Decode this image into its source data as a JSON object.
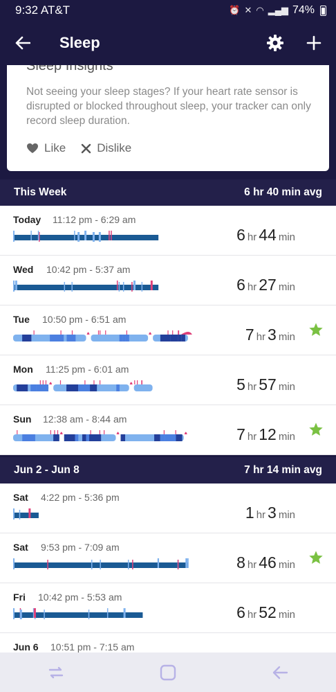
{
  "status_bar": {
    "carrier": "9:32 AT&T",
    "battery": "74%"
  },
  "app_bar": {
    "title": "Sleep"
  },
  "insight": {
    "title": "Sleep Insights",
    "body": "Not seeing your sleep stages? If your heart rate sensor is disrupted or blocked throughout sleep, your tracker can only record sleep duration.",
    "like_label": "Like",
    "dislike_label": "Dislike"
  },
  "sections": [
    {
      "title": "This Week",
      "avg": "6 hr 40 min avg",
      "rows": [
        {
          "day": "Today",
          "range": "11:12 pm - 6:29 am",
          "hours": "6",
          "minutes": "44",
          "star": false,
          "style": "classic",
          "bar_fraction": 0.74
        },
        {
          "day": "Wed",
          "range": "10:42 pm - 5:37 am",
          "hours": "6",
          "minutes": "27",
          "star": false,
          "style": "classic",
          "bar_fraction": 0.74
        },
        {
          "day": "Tue",
          "range": "10:50 pm - 6:51 am",
          "hours": "7",
          "minutes": "3",
          "star": true,
          "style": "stages",
          "bar_fraction": 0.86
        },
        {
          "day": "Mon",
          "range": "11:25 pm - 6:01 am",
          "hours": "5",
          "minutes": "57",
          "star": false,
          "style": "stages",
          "bar_fraction": 0.71
        },
        {
          "day": "Sun",
          "range": "12:38 am - 8:44 am",
          "hours": "7",
          "minutes": "12",
          "star": true,
          "style": "stages",
          "bar_fraction": 0.86
        }
      ]
    },
    {
      "title": "Jun 2 - Jun 8",
      "avg": "7 hr 14 min avg",
      "rows": [
        {
          "day": "Sat",
          "range": "4:22 pm - 5:36 pm",
          "hours": "1",
          "minutes": "3",
          "star": false,
          "style": "classic",
          "bar_fraction": 0.13
        },
        {
          "day": "Sat",
          "range": "9:53 pm - 7:09 am",
          "hours": "8",
          "minutes": "46",
          "star": true,
          "style": "classic",
          "bar_fraction": 0.86
        },
        {
          "day": "Fri",
          "range": "10:42 pm - 5:53 am",
          "hours": "6",
          "minutes": "52",
          "star": false,
          "style": "classic",
          "bar_fraction": 0.66
        },
        {
          "day": "Jun 6",
          "range": "10:51 pm - 7:15 am",
          "hours": "",
          "minutes": "",
          "star": false,
          "style": "none",
          "bar_fraction": 0
        }
      ]
    }
  ],
  "units": {
    "hr": "hr",
    "min": "min"
  },
  "colors": {
    "header": "#1c1941",
    "bar_dark": "#1a5a94",
    "bar_light": "#7fb2ee",
    "bar_deep": "#233f9a",
    "awake": "#e0417a",
    "star": "#7ac142"
  },
  "icons": {
    "back": "arrow-left-icon",
    "settings": "gear-icon",
    "add": "plus-icon",
    "like": "heart-icon",
    "dislike": "x-icon",
    "star": "star-icon",
    "recent": "recent-apps-icon",
    "home": "home-icon",
    "nav_back": "nav-back-icon"
  }
}
